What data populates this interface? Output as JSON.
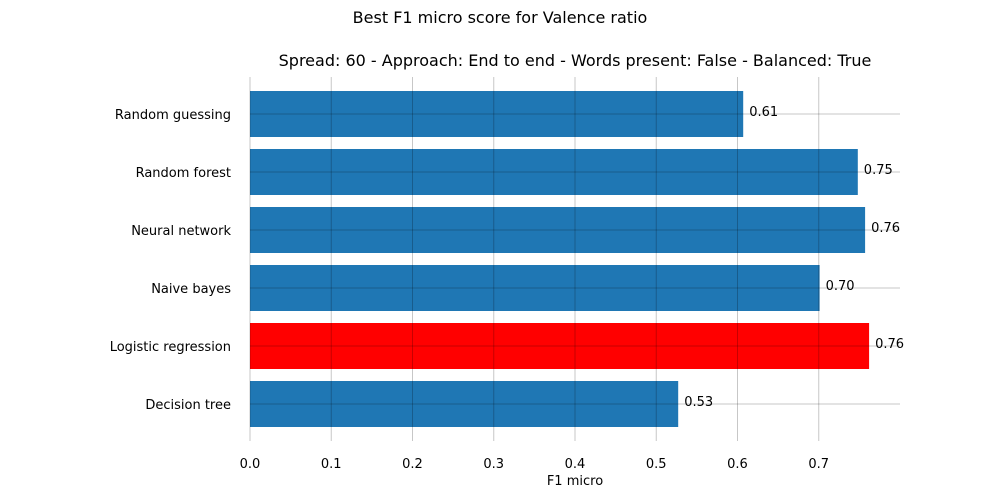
{
  "chart_data": {
    "type": "bar",
    "orientation": "horizontal",
    "suptitle": "Best F1 micro score for Valence ratio",
    "title": "Spread: 60 - Approach: End to end - Words present: False - Balanced: True",
    "xlabel": "F1 micro",
    "ylabel": "",
    "xlim": [
      0,
      0.8
    ],
    "xticks": [
      "0.0",
      "0.1",
      "0.2",
      "0.3",
      "0.4",
      "0.5",
      "0.6",
      "0.7"
    ],
    "xtick_values": [
      0.0,
      0.1,
      0.2,
      0.3,
      0.4,
      0.5,
      0.6,
      0.7
    ],
    "grid": true,
    "categories": [
      "Random guessing",
      "Random forest",
      "Neural network",
      "Naive bayes",
      "Logistic regression",
      "Decision tree"
    ],
    "values": [
      0.607,
      0.748,
      0.757,
      0.701,
      0.762,
      0.527
    ],
    "value_labels": [
      "0.61",
      "0.75",
      "0.76",
      "0.70",
      "0.76",
      "0.53"
    ],
    "colors": [
      "#1f77b4",
      "#1f77b4",
      "#1f77b4",
      "#1f77b4",
      "#ff0000",
      "#1f77b4"
    ],
    "highlight_category": "Logistic regression",
    "default_color": "#1f77b4",
    "highlight_color": "#ff0000"
  }
}
